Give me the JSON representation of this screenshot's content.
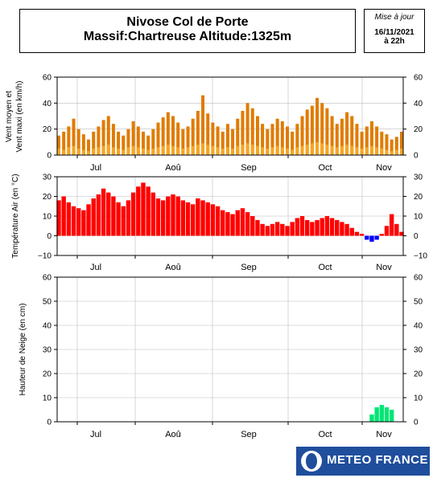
{
  "header": {
    "line1": "Nivose Col de Porte",
    "line2": "Massif:Chartreuse Altitude:1325m",
    "update_label": "Mise à jour",
    "update_date": "16/11/2021",
    "update_time": "à 22h"
  },
  "logo": {
    "text": "METEO FRANCE"
  },
  "colors": {
    "wind": "#e07b00",
    "wind_fill": "#f5a623",
    "temp_pos": "#ff0000",
    "temp_neg": "#0000ff",
    "snow": "#00e676"
  },
  "panels": {
    "wind": {
      "ylabel1": "Vent moyen et",
      "ylabel2": "Vent maxi (en km/h)"
    },
    "temp": {
      "ylabel": "Température Air (en °C)"
    },
    "snow": {
      "ylabel": "Hauteur de Neige (en cm)"
    }
  },
  "chart_data": [
    {
      "type": "area",
      "ylabel": "Vent moyen et Vent maxi (en km/h)",
      "ylim": [
        0,
        60
      ],
      "yticks": [
        0,
        20,
        40,
        60
      ],
      "month_labels": [
        "Jul",
        "Aoû",
        "Sep",
        "Oct",
        "Nov"
      ],
      "grid": true,
      "series": [
        {
          "name": "Vent moyen",
          "values": [
            5,
            4,
            6,
            7,
            5,
            4,
            3,
            5,
            6,
            7,
            8,
            6,
            5,
            4,
            6,
            7,
            6,
            5,
            4,
            5,
            6,
            7,
            8,
            7,
            6,
            5,
            6,
            7,
            8,
            9,
            8,
            7,
            6,
            5,
            6,
            5,
            7,
            8,
            9,
            8,
            7,
            6,
            5,
            6,
            7,
            6,
            5,
            4,
            6,
            7,
            8,
            9,
            10,
            9,
            8,
            7,
            6,
            7,
            8,
            7,
            6,
            5,
            6,
            7,
            6,
            5,
            4,
            3,
            4,
            5
          ]
        },
        {
          "name": "Vent maxi",
          "values": [
            15,
            18,
            22,
            28,
            20,
            16,
            12,
            18,
            22,
            27,
            30,
            24,
            18,
            15,
            20,
            26,
            22,
            18,
            15,
            20,
            25,
            29,
            33,
            30,
            25,
            20,
            22,
            28,
            34,
            46,
            32,
            25,
            22,
            18,
            24,
            20,
            28,
            34,
            40,
            36,
            30,
            24,
            20,
            24,
            28,
            26,
            22,
            18,
            24,
            30,
            35,
            38,
            44,
            40,
            36,
            30,
            24,
            28,
            33,
            30,
            24,
            18,
            22,
            26,
            22,
            18,
            16,
            12,
            14,
            18
          ]
        }
      ]
    },
    {
      "type": "area",
      "ylabel": "Température Air (en °C)",
      "ylim": [
        -10,
        30
      ],
      "yticks": [
        -10,
        0,
        10,
        20,
        30
      ],
      "month_labels": [
        "Jul",
        "Aoû",
        "Sep",
        "Oct",
        "Nov"
      ],
      "grid": true,
      "series": [
        {
          "name": "Température",
          "values": [
            18,
            20,
            17,
            15,
            14,
            13,
            16,
            19,
            21,
            24,
            22,
            20,
            17,
            15,
            18,
            22,
            25,
            27,
            25,
            22,
            19,
            18,
            20,
            21,
            20,
            18,
            17,
            16,
            19,
            18,
            17,
            16,
            15,
            13,
            12,
            11,
            13,
            14,
            12,
            10,
            8,
            6,
            5,
            6,
            7,
            6,
            5,
            7,
            9,
            10,
            8,
            7,
            8,
            9,
            10,
            9,
            8,
            7,
            6,
            4,
            2,
            1,
            -2,
            -3,
            -2,
            1,
            5,
            11,
            6,
            2
          ]
        }
      ]
    },
    {
      "type": "area",
      "ylabel": "Hauteur de Neige (en cm)",
      "ylim": [
        0,
        60
      ],
      "yticks": [
        0,
        10,
        20,
        30,
        40,
        50,
        60
      ],
      "month_labels": [
        "Jul",
        "Aoû",
        "Sep",
        "Oct",
        "Nov"
      ],
      "grid": true,
      "series": [
        {
          "name": "Hauteur de neige",
          "values": [
            0,
            0,
            0,
            0,
            0,
            0,
            0,
            0,
            0,
            0,
            0,
            0,
            0,
            0,
            0,
            0,
            0,
            0,
            0,
            0,
            0,
            0,
            0,
            0,
            0,
            0,
            0,
            0,
            0,
            0,
            0,
            0,
            0,
            0,
            0,
            0,
            0,
            0,
            0,
            0,
            0,
            0,
            0,
            0,
            0,
            0,
            0,
            0,
            0,
            0,
            0,
            0,
            0,
            0,
            0,
            0,
            0,
            0,
            0,
            0,
            0,
            0,
            0,
            3,
            6,
            7,
            6,
            5,
            0,
            0
          ]
        }
      ]
    }
  ]
}
